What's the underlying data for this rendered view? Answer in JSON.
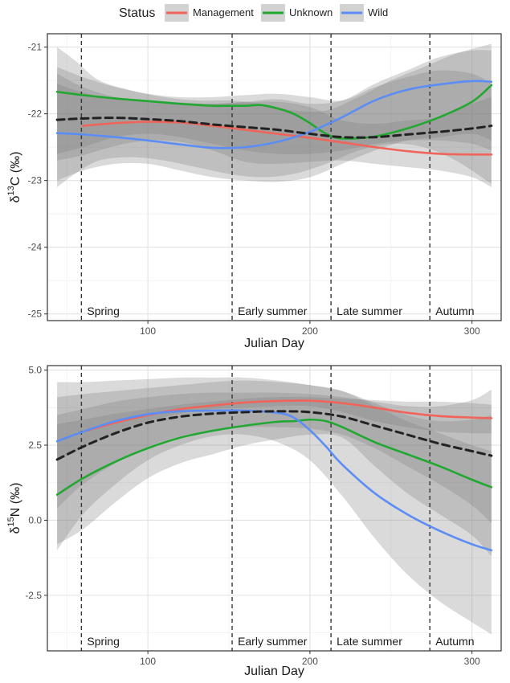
{
  "legend": {
    "title": "Status",
    "items": [
      {
        "label": "Management",
        "color": "#F0645A"
      },
      {
        "label": "Unknown",
        "color": "#22A832"
      },
      {
        "label": "Wild",
        "color": "#5B8DF5"
      }
    ]
  },
  "chart_data": [
    {
      "type": "line",
      "xlabel": "Julian Day",
      "ylabel_main": "δ",
      "ylabel_sup": "13",
      "ylabel_rest": "C (‰)",
      "xlim": [
        38,
        318
      ],
      "ylim": [
        -25.1,
        -20.8
      ],
      "x_ticks": [
        100,
        200,
        300
      ],
      "y_ticks": [
        -25,
        -24,
        -23,
        -22,
        -21
      ],
      "y_tick_labels": [
        "-25",
        "-24",
        "-23",
        "-22",
        "-21"
      ],
      "grid": true,
      "season_lines": [
        59,
        152,
        213,
        274
      ],
      "season_labels": [
        {
          "label": "Spring",
          "x": 61
        },
        {
          "label": "Early summer",
          "x": 154
        },
        {
          "label": "Late summer",
          "x": 215
        },
        {
          "label": "Autumn",
          "x": 276
        }
      ],
      "series": [
        {
          "name": "Management",
          "color": "#F0645A",
          "dashed": false,
          "x": [
            60,
            80,
            100,
            120,
            140,
            160,
            180,
            200,
            220,
            240,
            260,
            280,
            300,
            312
          ],
          "y": [
            -22.18,
            -22.14,
            -22.12,
            -22.13,
            -22.18,
            -22.24,
            -22.3,
            -22.36,
            -22.43,
            -22.5,
            -22.56,
            -22.6,
            -22.61,
            -22.61
          ]
        },
        {
          "name": "Unknown",
          "color": "#22A832",
          "dashed": false,
          "x": [
            44,
            60,
            80,
            100,
            120,
            140,
            150,
            160,
            170,
            180,
            190,
            200,
            210,
            220,
            240,
            260,
            280,
            300,
            312
          ],
          "y": [
            -21.67,
            -21.72,
            -21.77,
            -21.81,
            -21.85,
            -21.88,
            -21.88,
            -21.88,
            -21.87,
            -21.92,
            -22.0,
            -22.14,
            -22.3,
            -22.37,
            -22.34,
            -22.22,
            -22.05,
            -21.82,
            -21.57
          ]
        },
        {
          "name": "Wild",
          "color": "#5B8DF5",
          "dashed": false,
          "x": [
            44,
            60,
            80,
            100,
            120,
            140,
            160,
            180,
            200,
            220,
            240,
            260,
            280,
            300,
            312
          ],
          "y": [
            -22.29,
            -22.31,
            -22.35,
            -22.4,
            -22.46,
            -22.51,
            -22.5,
            -22.42,
            -22.27,
            -22.05,
            -21.8,
            -21.64,
            -21.56,
            -21.51,
            -21.52
          ]
        },
        {
          "name": "",
          "color": "#222222",
          "dashed": true,
          "x": [
            44,
            60,
            80,
            100,
            120,
            140,
            160,
            180,
            200,
            220,
            240,
            260,
            280,
            300,
            312
          ],
          "y": [
            -22.09,
            -22.07,
            -22.06,
            -22.08,
            -22.11,
            -22.16,
            -22.2,
            -22.24,
            -22.3,
            -22.35,
            -22.35,
            -22.31,
            -22.27,
            -22.22,
            -22.18
          ]
        }
      ],
      "bands": [
        {
          "x": [
            44,
            60,
            80,
            100,
            120,
            140,
            160,
            180,
            200,
            220,
            240,
            260,
            280,
            300,
            312
          ],
          "upper": [
            -21.55,
            -21.68,
            -21.78,
            -21.82,
            -21.84,
            -21.85,
            -21.83,
            -21.82,
            -21.9,
            -22.1,
            -22.15,
            -22.1,
            -22.05,
            -21.85,
            -21.75
          ],
          "lower": [
            -22.7,
            -22.62,
            -22.48,
            -22.4,
            -22.42,
            -22.55,
            -22.72,
            -22.75,
            -22.72,
            -22.7,
            -22.75,
            -22.8,
            -22.85,
            -22.95,
            -23.1
          ]
        },
        {
          "x": [
            44,
            60,
            80,
            100,
            120,
            140,
            160,
            180,
            200,
            220,
            240,
            260,
            280,
            300,
            312
          ],
          "upper": [
            -21.4,
            -21.6,
            -21.75,
            -21.8,
            -21.83,
            -21.85,
            -21.82,
            -21.78,
            -21.85,
            -21.8,
            -21.55,
            -21.35,
            -21.15,
            -21.05,
            -21.05
          ],
          "lower": [
            -23.0,
            -22.85,
            -22.75,
            -22.75,
            -22.85,
            -22.95,
            -23.0,
            -23.02,
            -22.95,
            -22.75,
            -22.55,
            -22.4,
            -22.35,
            -22.3,
            -22.4
          ]
        },
        {
          "x": [
            44,
            60,
            80,
            100,
            120,
            140,
            160,
            180,
            200,
            220,
            240,
            260,
            280,
            300,
            312
          ],
          "upper": [
            -21.3,
            -21.45,
            -21.6,
            -21.7,
            -21.75,
            -21.75,
            -21.72,
            -21.7,
            -21.75,
            -21.8,
            -21.6,
            -21.45,
            -21.35,
            -21.4,
            -21.55
          ],
          "lower": [
            -22.6,
            -22.5,
            -22.35,
            -22.3,
            -22.35,
            -22.45,
            -22.55,
            -22.6,
            -22.6,
            -22.55,
            -22.45,
            -22.4,
            -22.4,
            -22.45,
            -22.55
          ]
        },
        {
          "x": [
            44,
            55,
            70,
            90,
            110,
            130,
            150,
            170,
            190,
            210,
            230,
            250,
            270,
            290,
            312
          ],
          "upper": [
            -21.0,
            -21.2,
            -21.5,
            -21.65,
            -21.75,
            -21.8,
            -21.8,
            -21.85,
            -21.95,
            -21.95,
            -21.75,
            -21.5,
            -21.3,
            -21.1,
            -20.95
          ],
          "lower": [
            -23.1,
            -22.9,
            -22.7,
            -22.65,
            -22.7,
            -22.8,
            -22.9,
            -22.95,
            -22.9,
            -22.75,
            -22.55,
            -22.45,
            -22.5,
            -22.7,
            -23.05
          ]
        }
      ]
    },
    {
      "type": "line",
      "xlabel": "Julian Day",
      "ylabel_main": "δ",
      "ylabel_sup": "15",
      "ylabel_rest": "N (‰)",
      "xlim": [
        38,
        318
      ],
      "ylim": [
        -4.35,
        5.15
      ],
      "x_ticks": [
        100,
        200,
        300
      ],
      "y_ticks": [
        -2.5,
        0.0,
        2.5,
        5.0
      ],
      "y_tick_labels": [
        "-2.5",
        "0.0",
        "2.5",
        "5.0"
      ],
      "grid": true,
      "season_lines": [
        59,
        152,
        213,
        274
      ],
      "season_labels": [
        {
          "label": "Spring",
          "x": 61
        },
        {
          "label": "Early summer",
          "x": 154
        },
        {
          "label": "Late summer",
          "x": 215
        },
        {
          "label": "Autumn",
          "x": 276
        }
      ],
      "series": [
        {
          "name": "Management",
          "color": "#F0645A",
          "dashed": false,
          "x": [
            60,
            80,
            100,
            120,
            140,
            160,
            180,
            200,
            220,
            240,
            260,
            280,
            300,
            312
          ],
          "y": [
            2.95,
            3.25,
            3.5,
            3.7,
            3.82,
            3.92,
            3.97,
            3.98,
            3.9,
            3.75,
            3.58,
            3.47,
            3.42,
            3.4
          ]
        },
        {
          "name": "Unknown",
          "color": "#22A832",
          "dashed": false,
          "x": [
            44,
            60,
            80,
            100,
            120,
            140,
            160,
            180,
            190,
            200,
            210,
            220,
            240,
            260,
            280,
            300,
            312
          ],
          "y": [
            0.85,
            1.4,
            1.95,
            2.4,
            2.75,
            2.98,
            3.15,
            3.28,
            3.3,
            3.35,
            3.3,
            3.1,
            2.6,
            2.2,
            1.8,
            1.35,
            1.1
          ]
        },
        {
          "name": "Wild",
          "color": "#5B8DF5",
          "dashed": false,
          "x": [
            44,
            60,
            80,
            100,
            120,
            140,
            160,
            180,
            190,
            200,
            210,
            220,
            240,
            260,
            280,
            300,
            312
          ],
          "y": [
            2.63,
            2.95,
            3.3,
            3.53,
            3.63,
            3.65,
            3.65,
            3.58,
            3.42,
            3.0,
            2.45,
            1.85,
            0.9,
            0.2,
            -0.35,
            -0.8,
            -1.0
          ]
        },
        {
          "name": "",
          "color": "#222222",
          "dashed": true,
          "x": [
            44,
            60,
            80,
            100,
            120,
            140,
            160,
            180,
            200,
            220,
            240,
            260,
            280,
            300,
            312
          ],
          "y": [
            2.02,
            2.45,
            2.9,
            3.25,
            3.45,
            3.55,
            3.6,
            3.63,
            3.6,
            3.45,
            3.15,
            2.85,
            2.55,
            2.3,
            2.15
          ]
        }
      ],
      "bands": [
        {
          "x": [
            44,
            60,
            80,
            100,
            120,
            140,
            160,
            180,
            200,
            220,
            240,
            260,
            280,
            300,
            312
          ],
          "upper": [
            3.2,
            3.35,
            3.55,
            3.7,
            3.85,
            3.95,
            4.05,
            4.1,
            4.1,
            4.05,
            4.0,
            3.95,
            3.95,
            3.9,
            3.85
          ],
          "lower": [
            2.0,
            2.4,
            2.9,
            3.3,
            3.55,
            3.7,
            3.75,
            3.8,
            3.8,
            3.6,
            3.3,
            3.1,
            2.95,
            2.9,
            2.9
          ]
        },
        {
          "x": [
            44,
            60,
            80,
            100,
            120,
            140,
            160,
            180,
            200,
            220,
            240,
            260,
            280,
            300,
            312
          ],
          "upper": [
            4.1,
            4.2,
            4.3,
            4.4,
            4.5,
            4.6,
            4.65,
            4.6,
            4.5,
            4.3,
            3.9,
            3.5,
            3.3,
            3.35,
            3.5
          ],
          "lower": [
            -0.8,
            -0.3,
            0.6,
            1.4,
            1.9,
            2.2,
            2.5,
            2.7,
            2.85,
            2.75,
            1.8,
            0.9,
            0.2,
            -0.5,
            -1.2
          ]
        },
        {
          "x": [
            44,
            60,
            80,
            100,
            120,
            140,
            160,
            180,
            200,
            220,
            240,
            260,
            280,
            300,
            312
          ],
          "upper": [
            4.6,
            4.6,
            4.65,
            4.7,
            4.75,
            4.75,
            4.75,
            4.65,
            4.5,
            4.3,
            3.8,
            3.3,
            2.9,
            2.5,
            2.3
          ],
          "lower": [
            -1.0,
            0.2,
            1.2,
            2.0,
            2.5,
            2.8,
            2.85,
            2.6,
            2.0,
            0.8,
            -0.6,
            -1.8,
            -2.7,
            -3.4,
            -3.8
          ]
        },
        {
          "x": [
            44,
            60,
            80,
            100,
            120,
            140,
            160,
            180,
            200,
            220,
            240,
            260,
            280,
            300,
            312
          ],
          "upper": [
            3.5,
            3.7,
            3.95,
            4.1,
            4.2,
            4.25,
            4.25,
            4.25,
            4.2,
            4.1,
            3.95,
            3.8,
            3.8,
            4.0,
            4.35
          ],
          "lower": [
            0.4,
            1.2,
            1.9,
            2.45,
            2.8,
            3.0,
            3.1,
            3.1,
            3.05,
            2.85,
            2.4,
            1.8,
            1.2,
            0.5,
            -0.1
          ]
        }
      ]
    }
  ]
}
